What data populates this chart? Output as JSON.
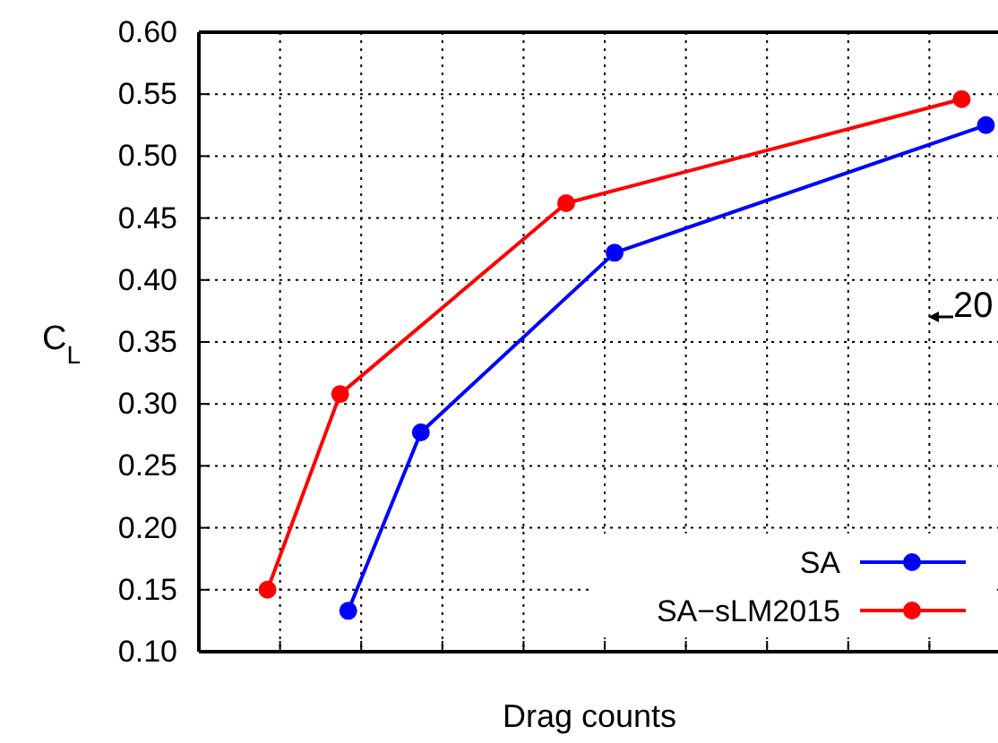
{
  "chart_data": {
    "type": "line",
    "xlabel": "Drag counts",
    "ylabel": "C$_{L}$",
    "categories": [
      null,
      null,
      null,
      null,
      null,
      null,
      null,
      null,
      null,
      null,
      null,
      null,
      null,
      null,
      null,
      null,
      null,
      null,
      null,
      null,
      null,
      null,
      null,
      null,
      null,
      null,
      null,
      null,
      null,
      null,
      null,
      null,
      null,
      null,
      null,
      null,
      null,
      null,
      null,
      null,
      null,
      null,
      null,
      null,
      null,
      null,
      null,
      null,
      null,
      null,
      null,
      null,
      null,
      null,
      null,
      null,
      null,
      null,
      null,
      null,
      null,
      null,
      null,
      null,
      null,
      null,
      null,
      null,
      null,
      null,
      null,
      null,
      null,
      null,
      null,
      null,
      null,
      null,
      null,
      null,
      null,
      null,
      null,
      null,
      null,
      null,
      null,
      null,
      null,
      null,
      null,
      null,
      null,
      null,
      null,
      null,
      null,
      null,
      null
    ],
    "ylim": [
      0.1,
      0.6
    ],
    "yticks": [
      {
        "value": 0.1,
        "label": "0.10"
      },
      0.15,
      {
        "value": 0.2,
        "label": "0.20"
      },
      0.25,
      {
        "value": 0.3,
        "label": "0.30"
      },
      0.35,
      {
        "value": 0.4,
        "label": "0.40"
      },
      0.45,
      {
        "value": 0.5,
        "label": "0.50"
      },
      0.55,
      {
        "value": 0.6,
        "label": "0.60"
      }
    ],
    "tick_labels": "y",
    "grid": true,
    "legend": "bottom right",
    "marker": "circle",
    "line_style": "solid",
    "series": [
      {
        "name": "SA",
        "color": "#0000ff",
        "values": [
          null,
          null,
          null,
          null,
          null,
          null,
          null,
          null,
          null,
          null,
          null,
          null,
          null,
          null,
          null,
          null,
          null,
          null,
          0.133,
          null,
          null,
          null,
          null,
          null,
          null,
          null,
          null,
          0.277,
          null,
          null,
          null,
          null,
          null,
          null,
          null,
          null,
          null,
          null,
          null,
          null,
          null,
          null,
          null,
          null,
          null,
          null,
          null,
          null,
          null,
          null,
          null,
          0.422,
          null,
          null,
          null,
          null,
          null,
          null,
          null,
          null,
          null,
          null,
          null,
          null,
          null,
          null,
          null,
          null,
          null,
          null,
          null,
          null,
          null,
          null,
          null,
          null,
          null,
          null,
          null,
          null,
          null,
          null,
          null,
          null,
          null,
          null,
          null,
          null,
          null,
          null,
          null,
          null,
          null,
          null,
          null,
          null,
          null,
          0.525,
          null
        ]
      },
      {
        "name": "SA−sLM2015",
        "color": "#ff0000",
        "values": [
          null,
          null,
          null,
          null,
          null,
          null,
          null,
          null,
          0.15,
          null,
          null,
          null,
          null,
          null,
          null,
          null,
          null,
          0.308,
          null,
          null,
          null,
          null,
          null,
          null,
          null,
          null,
          null,
          null,
          null,
          null,
          null,
          null,
          null,
          null,
          null,
          null,
          null,
          null,
          null,
          null,
          null,
          null,
          null,
          null,
          null,
          0.462,
          null,
          null,
          null,
          null,
          null,
          null,
          null,
          null,
          null,
          null,
          null,
          null,
          null,
          null,
          null,
          null,
          null,
          null,
          null,
          null,
          null,
          null,
          null,
          null,
          null,
          null,
          null,
          null,
          null,
          null,
          null,
          null,
          null,
          null,
          null,
          null,
          null,
          null,
          null,
          null,
          null,
          null,
          null,
          null,
          null,
          null,
          null,
          null,
          0.546,
          null,
          null,
          null,
          null
        ]
      }
    ],
    "annotations": [
      "20"
    ]
  }
}
